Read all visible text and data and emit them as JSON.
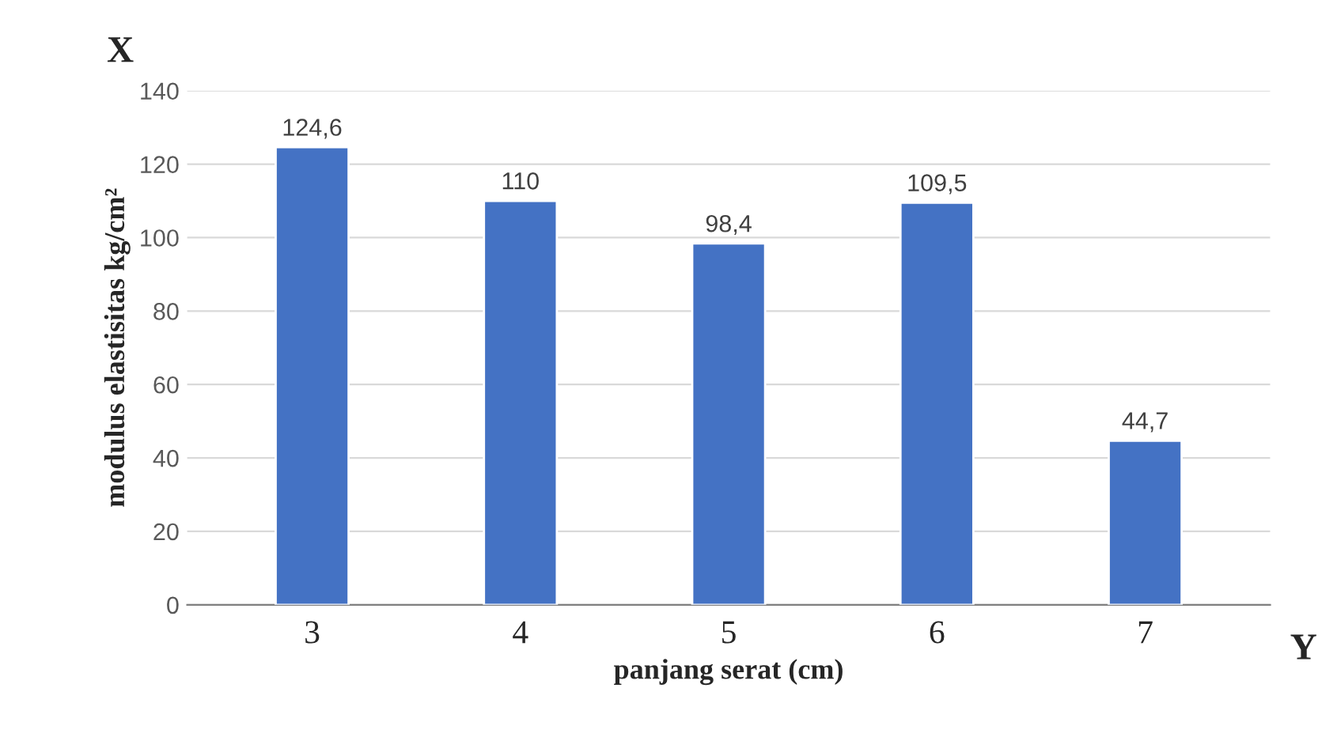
{
  "chart_data": {
    "type": "bar",
    "categories": [
      "3",
      "4",
      "5",
      "6",
      "7"
    ],
    "values": [
      124.6,
      110,
      98.4,
      109.5,
      44.7
    ],
    "value_labels": [
      "124,6",
      "110",
      "98,4",
      "109,5",
      "44,7"
    ],
    "color": "#4472c4",
    "xlabel": "panjang serat (cm)",
    "ylabel": "modulus elastisitas kg/cm²",
    "annotations": [
      "X",
      "Y"
    ],
    "ylim": [
      0,
      140
    ],
    "yticks": [
      0,
      20,
      40,
      60,
      80,
      100,
      120,
      140
    ],
    "grid": "y"
  }
}
